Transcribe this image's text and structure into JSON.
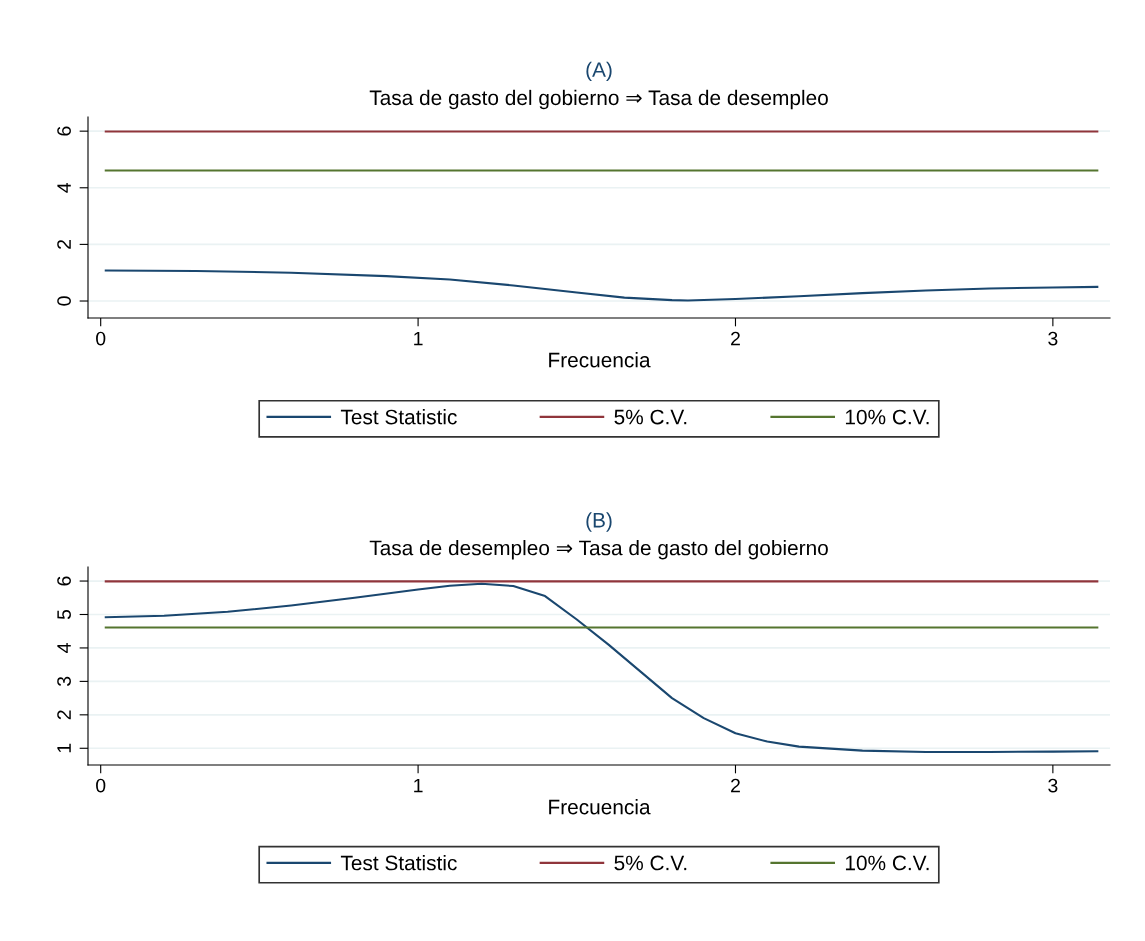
{
  "chart_data": [
    {
      "type": "line",
      "title": "(A)",
      "subtitle": "Tasa de gasto del gobierno ⇒ Tasa de desempleo",
      "xlabel": "Frecuencia",
      "xlim": [
        -0.04,
        3.18
      ],
      "xticks": [
        0,
        1,
        2,
        3
      ],
      "ylim": [
        -0.6,
        6.5
      ],
      "yticks": [
        0,
        2,
        4,
        6
      ],
      "grid": "y",
      "legend": "bottom",
      "series": [
        {
          "name": "Test Statistic",
          "color": "#1a476f",
          "x": [
            0.016,
            0.3,
            0.6,
            0.9,
            1.1,
            1.3,
            1.5,
            1.65,
            1.8,
            1.85,
            2.0,
            2.2,
            2.4,
            2.6,
            2.8,
            3.0,
            3.14
          ],
          "values": [
            1.08,
            1.06,
            1.0,
            0.88,
            0.76,
            0.55,
            0.3,
            0.12,
            0.03,
            0.02,
            0.07,
            0.17,
            0.28,
            0.37,
            0.44,
            0.48,
            0.5
          ]
        },
        {
          "name": "5% C.V.",
          "color": "#90353b",
          "x": [
            0.016,
            3.14
          ],
          "values": [
            5.99,
            5.99
          ]
        },
        {
          "name": "10% C.V.",
          "color": "#55752f",
          "x": [
            0.016,
            3.14
          ],
          "values": [
            4.61,
            4.61
          ]
        }
      ]
    },
    {
      "type": "line",
      "title": "(B)",
      "subtitle": "Tasa de desempleo ⇒ Tasa de gasto del gobierno",
      "xlabel": "Frecuencia",
      "xlim": [
        -0.04,
        3.18
      ],
      "xticks": [
        0,
        1,
        2,
        3
      ],
      "ylim": [
        0.5,
        6.42
      ],
      "yticks": [
        1,
        2,
        3,
        4,
        5,
        6
      ],
      "grid": "y",
      "legend": "bottom",
      "series": [
        {
          "name": "Test Statistic",
          "color": "#1a476f",
          "x": [
            0.016,
            0.2,
            0.4,
            0.6,
            0.8,
            1.0,
            1.1,
            1.2,
            1.3,
            1.4,
            1.5,
            1.6,
            1.7,
            1.8,
            1.9,
            2.0,
            2.1,
            2.2,
            2.4,
            2.6,
            2.8,
            3.0,
            3.14
          ],
          "values": [
            4.92,
            4.96,
            5.08,
            5.27,
            5.5,
            5.75,
            5.86,
            5.92,
            5.85,
            5.55,
            4.85,
            4.1,
            3.3,
            2.5,
            1.9,
            1.45,
            1.2,
            1.05,
            0.93,
            0.89,
            0.89,
            0.9,
            0.91
          ]
        },
        {
          "name": "5% C.V.",
          "color": "#90353b",
          "x": [
            0.016,
            3.14
          ],
          "values": [
            5.99,
            5.99
          ]
        },
        {
          "name": "10% C.V.",
          "color": "#55752f",
          "x": [
            0.016,
            3.14
          ],
          "values": [
            4.61,
            4.61
          ]
        }
      ]
    }
  ]
}
